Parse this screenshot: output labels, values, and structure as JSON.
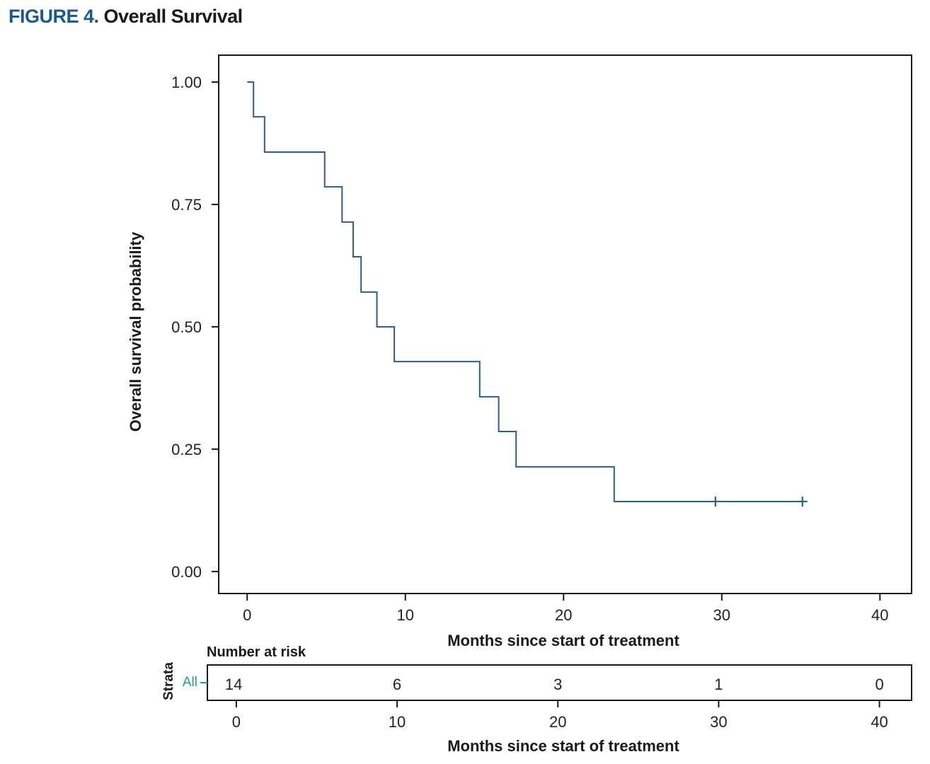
{
  "caption": {
    "label": "FIGURE 4.",
    "title": "Overall Survival"
  },
  "chart_data": {
    "type": "line",
    "subtype": "kaplan-meier step",
    "ylabel": "Overall survival probability",
    "xlabel": "Months since start of treatment",
    "xlim": [
      -1.8,
      42
    ],
    "ylim": [
      -0.045,
      1.055
    ],
    "xticks": [
      0,
      10,
      20,
      30,
      40
    ],
    "yticks": [
      0,
      0.25,
      0.5,
      0.75,
      1
    ],
    "ytick_labels": [
      "0.00",
      "0.25",
      "0.50",
      "0.75",
      "1.00"
    ],
    "line_color": "#2f5f86",
    "grid": false,
    "series": [
      {
        "step_points": [
          {
            "x": 0,
            "y": 1.0
          },
          {
            "x": 0.4,
            "y": 0.929
          },
          {
            "x": 1.1,
            "y": 0.857
          },
          {
            "x": 4.9,
            "y": 0.786
          },
          {
            "x": 6.0,
            "y": 0.714
          },
          {
            "x": 6.7,
            "y": 0.643
          },
          {
            "x": 7.2,
            "y": 0.571
          },
          {
            "x": 8.2,
            "y": 0.5
          },
          {
            "x": 9.3,
            "y": 0.429
          },
          {
            "x": 14.7,
            "y": 0.357
          },
          {
            "x": 15.9,
            "y": 0.286
          },
          {
            "x": 17.0,
            "y": 0.214
          },
          {
            "x": 23.2,
            "y": 0.143
          },
          {
            "x": 35.4,
            "y": 0.143
          }
        ],
        "censored": [
          {
            "x": 29.6,
            "y": 0.143
          },
          {
            "x": 35.1,
            "y": 0.143
          }
        ]
      }
    ],
    "risk_table": {
      "title": "Number at risk",
      "strata_title": "Strata",
      "strata_label": "All",
      "strata_color": "#2a9a8c",
      "times": [
        0,
        10,
        20,
        30,
        40
      ],
      "counts": [
        "14",
        "6",
        "3",
        "1",
        "0"
      ],
      "xlabel": "Months since start of treatment",
      "xticks": [
        0,
        10,
        20,
        30,
        40
      ]
    }
  }
}
